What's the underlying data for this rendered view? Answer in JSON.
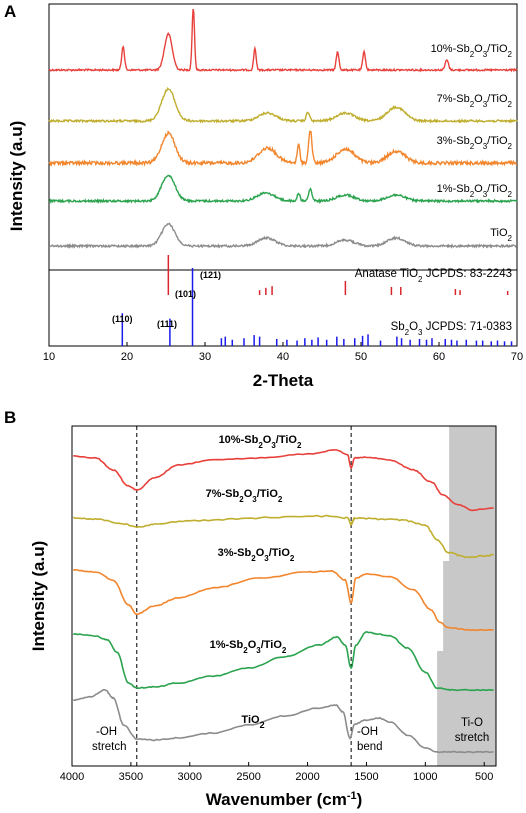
{
  "colors": {
    "s10": "#e8413c",
    "s7": "#bfae2f",
    "s3": "#f2862e",
    "s1": "#2ba34e",
    "tio2": "#8c8c8c",
    "anatase": "#d9252b",
    "sb2o3": "#1a1aeb",
    "shade": "#c8c8c8"
  },
  "chart_data": [
    {
      "panel": "A",
      "type": "line",
      "xlabel": "2-Theta",
      "ylabel": "Intensity (a.u)",
      "xlim": [
        10,
        70
      ],
      "xticks": [
        "10",
        "20",
        "30",
        "40",
        "50",
        "60",
        "70"
      ],
      "series": [
        {
          "name": "10%-Sb2O3/TiO2",
          "display": [
            "10%-Sb",
            "2",
            "O",
            "3",
            "/TiO",
            "2"
          ],
          "peaks": [
            19.5,
            25.3,
            28.5,
            36.4,
            47.0,
            50.4,
            61.0
          ]
        },
        {
          "name": "7%-Sb2O3/TiO2",
          "display": [
            "7%-Sb",
            "2",
            "O",
            "3",
            "/TiO",
            "2"
          ],
          "peaks": [
            25.3,
            38.0,
            43.2,
            48.0,
            54.5
          ]
        },
        {
          "name": "3%-Sb2O3/TiO2",
          "display": [
            "3%-Sb",
            "2",
            "O",
            "3",
            "/TiO",
            "2"
          ],
          "peaks": [
            25.3,
            38.0,
            42.0,
            43.5,
            48.0,
            54.5
          ]
        },
        {
          "name": "1%-Sb2O3/TiO2",
          "display": [
            "1%-Sb",
            "2",
            "O",
            "3",
            "/TiO",
            "2"
          ],
          "peaks": [
            25.3,
            37.8,
            42.0,
            43.5,
            48.0,
            54.5
          ]
        },
        {
          "name": "TiO2",
          "display": [
            "TiO",
            "2",
            "",
            "",
            "",
            ""
          ],
          "peaks": [
            25.3,
            37.9,
            48.0,
            54.5
          ]
        }
      ],
      "references": [
        {
          "label": "Anatase TiO2 JCPDS: 83-2243",
          "display": [
            "Anatase TiO",
            "2",
            " JCPDS: 83-2243"
          ],
          "peak_label": "(101)",
          "positions": [
            25.3,
            37.0,
            37.8,
            38.6,
            48.0,
            53.9,
            55.1,
            62.1,
            62.7,
            68.8
          ],
          "heights": [
            1.0,
            0.12,
            0.18,
            0.22,
            0.35,
            0.2,
            0.2,
            0.15,
            0.12,
            0.1
          ]
        },
        {
          "label": "Sb2O3 JCPDS: 71-0383",
          "display": [
            "Sb",
            "2",
            "O",
            "3",
            " JCPDS: 71-0383"
          ],
          "peak_labels": [
            "(110)",
            "(111)",
            "(121)"
          ],
          "positions": [
            19.4,
            25.5,
            28.4,
            32.1,
            32.6,
            33.5,
            35.0,
            36.3,
            37.0,
            39.2,
            40.5,
            41.8,
            42.8,
            43.7,
            44.5,
            45.6,
            46.9,
            47.8,
            49.2,
            50.2,
            50.9,
            52.5,
            54.6,
            55.2,
            56.3,
            57.5,
            58.4,
            59.1,
            60.8,
            61.6,
            62.3,
            63.5,
            64.8,
            65.6,
            66.7,
            67.5,
            68.4,
            69.3
          ],
          "heights": [
            0.42,
            0.35,
            1.0,
            0.1,
            0.12,
            0.08,
            0.1,
            0.14,
            0.12,
            0.09,
            0.08,
            0.07,
            0.1,
            0.08,
            0.11,
            0.08,
            0.12,
            0.09,
            0.1,
            0.13,
            0.15,
            0.07,
            0.12,
            0.1,
            0.08,
            0.09,
            0.08,
            0.1,
            0.09,
            0.08,
            0.07,
            0.08,
            0.07,
            0.07,
            0.06,
            0.07,
            0.06,
            0.06
          ]
        }
      ]
    },
    {
      "panel": "B",
      "type": "line",
      "xlabel_parts": [
        "Wavenumber (cm",
        "-1",
        ")"
      ],
      "ylabel": "Intensity (a.u)",
      "xlim": [
        4000,
        400
      ],
      "xticks": [
        "4000",
        "3500",
        "3000",
        "2500",
        "2000",
        "1500",
        "1000",
        "500"
      ],
      "shaded_region": [
        900,
        400
      ],
      "dashed_lines": [
        3450,
        1630
      ],
      "series": [
        {
          "name": "10%-Sb2O3/TiO2",
          "display": [
            "10%-Sb",
            "2",
            "O",
            "3",
            "/TiO",
            "2"
          ]
        },
        {
          "name": "7%-Sb2O3/TiO2",
          "display": [
            "7%-Sb",
            "2",
            "O",
            "3",
            "/TiO",
            "2"
          ]
        },
        {
          "name": "3%-Sb2O3/TiO2",
          "display": [
            "3%-Sb",
            "2",
            "O",
            "3",
            "/TiO",
            "2"
          ]
        },
        {
          "name": "1%-Sb2O3/TiO2",
          "display": [
            "1%-Sb",
            "2",
            "O",
            "3",
            "/TiO",
            "2"
          ]
        },
        {
          "name": "TiO2",
          "display": [
            "TiO",
            "2",
            "",
            "",
            "",
            ""
          ]
        }
      ],
      "annotations": [
        {
          "lines": [
            "-OH",
            "stretch"
          ]
        },
        {
          "lines": [
            "-OH",
            "bend"
          ]
        },
        {
          "lines": [
            "Ti-O",
            "stretch"
          ]
        }
      ]
    }
  ],
  "panel_letters": [
    "A",
    "B"
  ]
}
